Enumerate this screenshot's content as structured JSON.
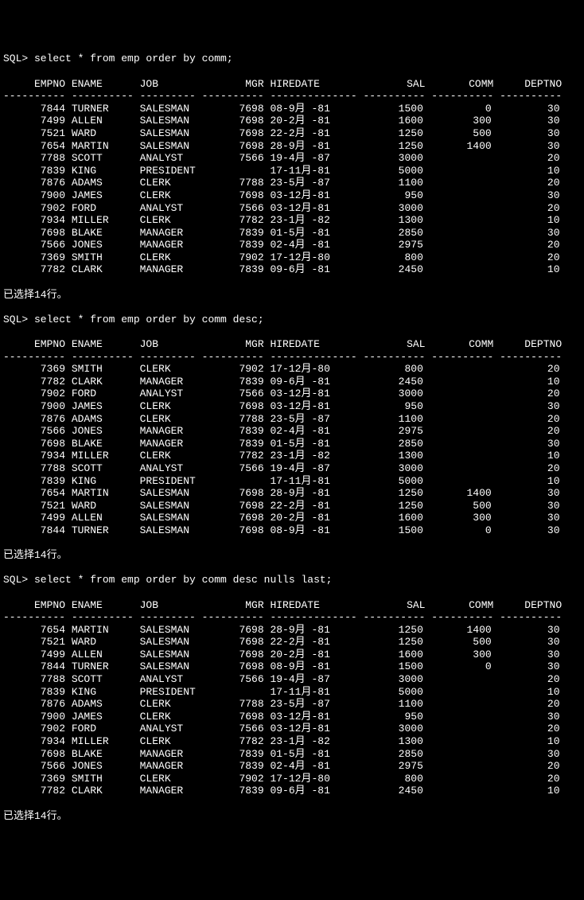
{
  "background_color": "#000000",
  "text_color": "#ffffff",
  "font_family": "Courier New",
  "font_size": 13,
  "queries": [
    {
      "prompt": "SQL> ",
      "sql": "select * from emp order by comm;",
      "columns": [
        "EMPNO",
        "ENAME",
        "JOB",
        "MGR",
        "HIREDATE",
        "SAL",
        "COMM",
        "DEPTNO"
      ],
      "rows": [
        {
          "empno": "7844",
          "ename": "TURNER",
          "job": "SALESMAN",
          "mgr": "7698",
          "hiredate": "08-9月 -81",
          "sal": "1500",
          "comm": "0",
          "deptno": "30"
        },
        {
          "empno": "7499",
          "ename": "ALLEN",
          "job": "SALESMAN",
          "mgr": "7698",
          "hiredate": "20-2月 -81",
          "sal": "1600",
          "comm": "300",
          "deptno": "30"
        },
        {
          "empno": "7521",
          "ename": "WARD",
          "job": "SALESMAN",
          "mgr": "7698",
          "hiredate": "22-2月 -81",
          "sal": "1250",
          "comm": "500",
          "deptno": "30"
        },
        {
          "empno": "7654",
          "ename": "MARTIN",
          "job": "SALESMAN",
          "mgr": "7698",
          "hiredate": "28-9月 -81",
          "sal": "1250",
          "comm": "1400",
          "deptno": "30"
        },
        {
          "empno": "7788",
          "ename": "SCOTT",
          "job": "ANALYST",
          "mgr": "7566",
          "hiredate": "19-4月 -87",
          "sal": "3000",
          "comm": "",
          "deptno": "20"
        },
        {
          "empno": "7839",
          "ename": "KING",
          "job": "PRESIDENT",
          "mgr": "",
          "hiredate": "17-11月-81",
          "sal": "5000",
          "comm": "",
          "deptno": "10"
        },
        {
          "empno": "7876",
          "ename": "ADAMS",
          "job": "CLERK",
          "mgr": "7788",
          "hiredate": "23-5月 -87",
          "sal": "1100",
          "comm": "",
          "deptno": "20"
        },
        {
          "empno": "7900",
          "ename": "JAMES",
          "job": "CLERK",
          "mgr": "7698",
          "hiredate": "03-12月-81",
          "sal": "950",
          "comm": "",
          "deptno": "30"
        },
        {
          "empno": "7902",
          "ename": "FORD",
          "job": "ANALYST",
          "mgr": "7566",
          "hiredate": "03-12月-81",
          "sal": "3000",
          "comm": "",
          "deptno": "20"
        },
        {
          "empno": "7934",
          "ename": "MILLER",
          "job": "CLERK",
          "mgr": "7782",
          "hiredate": "23-1月 -82",
          "sal": "1300",
          "comm": "",
          "deptno": "10"
        },
        {
          "empno": "7698",
          "ename": "BLAKE",
          "job": "MANAGER",
          "mgr": "7839",
          "hiredate": "01-5月 -81",
          "sal": "2850",
          "comm": "",
          "deptno": "30"
        },
        {
          "empno": "7566",
          "ename": "JONES",
          "job": "MANAGER",
          "mgr": "7839",
          "hiredate": "02-4月 -81",
          "sal": "2975",
          "comm": "",
          "deptno": "20"
        },
        {
          "empno": "7369",
          "ename": "SMITH",
          "job": "CLERK",
          "mgr": "7902",
          "hiredate": "17-12月-80",
          "sal": "800",
          "comm": "",
          "deptno": "20"
        },
        {
          "empno": "7782",
          "ename": "CLARK",
          "job": "MANAGER",
          "mgr": "7839",
          "hiredate": "09-6月 -81",
          "sal": "2450",
          "comm": "",
          "deptno": "10"
        }
      ],
      "footer": "已选择14行。"
    },
    {
      "prompt": "SQL> ",
      "sql": "select * from emp order by comm desc;",
      "columns": [
        "EMPNO",
        "ENAME",
        "JOB",
        "MGR",
        "HIREDATE",
        "SAL",
        "COMM",
        "DEPTNO"
      ],
      "rows": [
        {
          "empno": "7369",
          "ename": "SMITH",
          "job": "CLERK",
          "mgr": "7902",
          "hiredate": "17-12月-80",
          "sal": "800",
          "comm": "",
          "deptno": "20"
        },
        {
          "empno": "7782",
          "ename": "CLARK",
          "job": "MANAGER",
          "mgr": "7839",
          "hiredate": "09-6月 -81",
          "sal": "2450",
          "comm": "",
          "deptno": "10"
        },
        {
          "empno": "7902",
          "ename": "FORD",
          "job": "ANALYST",
          "mgr": "7566",
          "hiredate": "03-12月-81",
          "sal": "3000",
          "comm": "",
          "deptno": "20"
        },
        {
          "empno": "7900",
          "ename": "JAMES",
          "job": "CLERK",
          "mgr": "7698",
          "hiredate": "03-12月-81",
          "sal": "950",
          "comm": "",
          "deptno": "30"
        },
        {
          "empno": "7876",
          "ename": "ADAMS",
          "job": "CLERK",
          "mgr": "7788",
          "hiredate": "23-5月 -87",
          "sal": "1100",
          "comm": "",
          "deptno": "20"
        },
        {
          "empno": "7566",
          "ename": "JONES",
          "job": "MANAGER",
          "mgr": "7839",
          "hiredate": "02-4月 -81",
          "sal": "2975",
          "comm": "",
          "deptno": "20"
        },
        {
          "empno": "7698",
          "ename": "BLAKE",
          "job": "MANAGER",
          "mgr": "7839",
          "hiredate": "01-5月 -81",
          "sal": "2850",
          "comm": "",
          "deptno": "30"
        },
        {
          "empno": "7934",
          "ename": "MILLER",
          "job": "CLERK",
          "mgr": "7782",
          "hiredate": "23-1月 -82",
          "sal": "1300",
          "comm": "",
          "deptno": "10"
        },
        {
          "empno": "7788",
          "ename": "SCOTT",
          "job": "ANALYST",
          "mgr": "7566",
          "hiredate": "19-4月 -87",
          "sal": "3000",
          "comm": "",
          "deptno": "20"
        },
        {
          "empno": "7839",
          "ename": "KING",
          "job": "PRESIDENT",
          "mgr": "",
          "hiredate": "17-11月-81",
          "sal": "5000",
          "comm": "",
          "deptno": "10"
        },
        {
          "empno": "7654",
          "ename": "MARTIN",
          "job": "SALESMAN",
          "mgr": "7698",
          "hiredate": "28-9月 -81",
          "sal": "1250",
          "comm": "1400",
          "deptno": "30"
        },
        {
          "empno": "7521",
          "ename": "WARD",
          "job": "SALESMAN",
          "mgr": "7698",
          "hiredate": "22-2月 -81",
          "sal": "1250",
          "comm": "500",
          "deptno": "30"
        },
        {
          "empno": "7499",
          "ename": "ALLEN",
          "job": "SALESMAN",
          "mgr": "7698",
          "hiredate": "20-2月 -81",
          "sal": "1600",
          "comm": "300",
          "deptno": "30"
        },
        {
          "empno": "7844",
          "ename": "TURNER",
          "job": "SALESMAN",
          "mgr": "7698",
          "hiredate": "08-9月 -81",
          "sal": "1500",
          "comm": "0",
          "deptno": "30"
        }
      ],
      "footer": "已选择14行。"
    },
    {
      "prompt": "SQL> ",
      "sql": "select * from emp order by comm desc nulls last;",
      "columns": [
        "EMPNO",
        "ENAME",
        "JOB",
        "MGR",
        "HIREDATE",
        "SAL",
        "COMM",
        "DEPTNO"
      ],
      "rows": [
        {
          "empno": "7654",
          "ename": "MARTIN",
          "job": "SALESMAN",
          "mgr": "7698",
          "hiredate": "28-9月 -81",
          "sal": "1250",
          "comm": "1400",
          "deptno": "30"
        },
        {
          "empno": "7521",
          "ename": "WARD",
          "job": "SALESMAN",
          "mgr": "7698",
          "hiredate": "22-2月 -81",
          "sal": "1250",
          "comm": "500",
          "deptno": "30"
        },
        {
          "empno": "7499",
          "ename": "ALLEN",
          "job": "SALESMAN",
          "mgr": "7698",
          "hiredate": "20-2月 -81",
          "sal": "1600",
          "comm": "300",
          "deptno": "30"
        },
        {
          "empno": "7844",
          "ename": "TURNER",
          "job": "SALESMAN",
          "mgr": "7698",
          "hiredate": "08-9月 -81",
          "sal": "1500",
          "comm": "0",
          "deptno": "30"
        },
        {
          "empno": "7788",
          "ename": "SCOTT",
          "job": "ANALYST",
          "mgr": "7566",
          "hiredate": "19-4月 -87",
          "sal": "3000",
          "comm": "",
          "deptno": "20"
        },
        {
          "empno": "7839",
          "ename": "KING",
          "job": "PRESIDENT",
          "mgr": "",
          "hiredate": "17-11月-81",
          "sal": "5000",
          "comm": "",
          "deptno": "10"
        },
        {
          "empno": "7876",
          "ename": "ADAMS",
          "job": "CLERK",
          "mgr": "7788",
          "hiredate": "23-5月 -87",
          "sal": "1100",
          "comm": "",
          "deptno": "20"
        },
        {
          "empno": "7900",
          "ename": "JAMES",
          "job": "CLERK",
          "mgr": "7698",
          "hiredate": "03-12月-81",
          "sal": "950",
          "comm": "",
          "deptno": "30"
        },
        {
          "empno": "7902",
          "ename": "FORD",
          "job": "ANALYST",
          "mgr": "7566",
          "hiredate": "03-12月-81",
          "sal": "3000",
          "comm": "",
          "deptno": "20"
        },
        {
          "empno": "7934",
          "ename": "MILLER",
          "job": "CLERK",
          "mgr": "7782",
          "hiredate": "23-1月 -82",
          "sal": "1300",
          "comm": "",
          "deptno": "10"
        },
        {
          "empno": "7698",
          "ename": "BLAKE",
          "job": "MANAGER",
          "mgr": "7839",
          "hiredate": "01-5月 -81",
          "sal": "2850",
          "comm": "",
          "deptno": "30"
        },
        {
          "empno": "7566",
          "ename": "JONES",
          "job": "MANAGER",
          "mgr": "7839",
          "hiredate": "02-4月 -81",
          "sal": "2975",
          "comm": "",
          "deptno": "20"
        },
        {
          "empno": "7369",
          "ename": "SMITH",
          "job": "CLERK",
          "mgr": "7902",
          "hiredate": "17-12月-80",
          "sal": "800",
          "comm": "",
          "deptno": "20"
        },
        {
          "empno": "7782",
          "ename": "CLARK",
          "job": "MANAGER",
          "mgr": "7839",
          "hiredate": "09-6月 -81",
          "sal": "2450",
          "comm": "",
          "deptno": "10"
        }
      ],
      "footer": "已选择14行。"
    }
  ],
  "column_spec": {
    "empno": {
      "width": 10,
      "align": "right"
    },
    "ename": {
      "width": 10,
      "align": "left"
    },
    "job": {
      "width": 9,
      "align": "left"
    },
    "mgr": {
      "width": 10,
      "align": "right"
    },
    "hiredate": {
      "width": 14,
      "align": "left"
    },
    "sal": {
      "width": 10,
      "align": "right"
    },
    "comm": {
      "width": 10,
      "align": "right"
    },
    "deptno": {
      "width": 10,
      "align": "right"
    }
  }
}
